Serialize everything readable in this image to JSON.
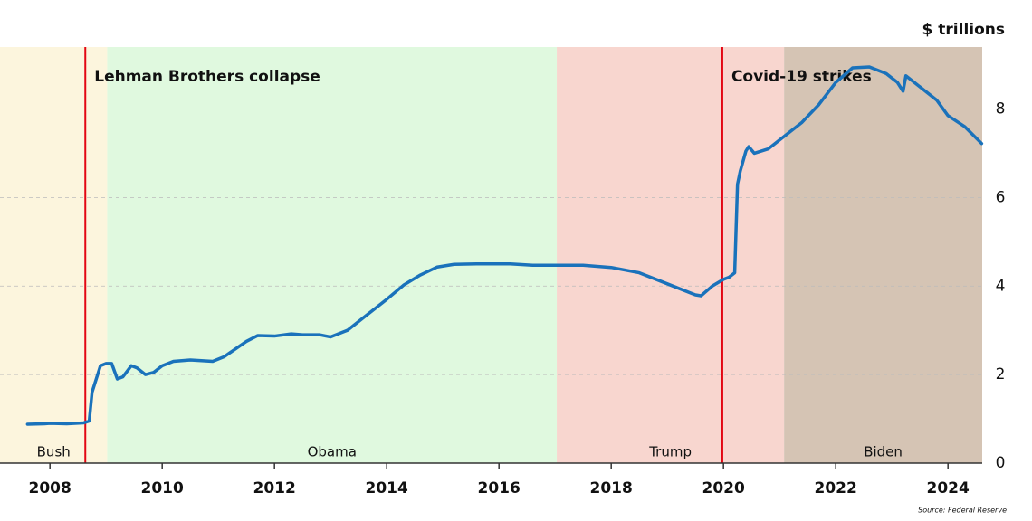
{
  "chart_data": {
    "type": "line",
    "y_axis_label": "$ trillions",
    "source": "Source: Federal Reserve",
    "x": [
      2007.6,
      2007.9,
      2008.0,
      2008.3,
      2008.6,
      2008.7,
      2008.75,
      2008.85,
      2008.9,
      2009.0,
      2009.1,
      2009.2,
      2009.3,
      2009.45,
      2009.55,
      2009.7,
      2009.85,
      2010.0,
      2010.2,
      2010.5,
      2010.9,
      2011.1,
      2011.5,
      2011.7,
      2012.0,
      2012.3,
      2012.5,
      2012.8,
      2013.0,
      2013.3,
      2013.6,
      2014.0,
      2014.3,
      2014.6,
      2014.9,
      2015.2,
      2015.6,
      2016.2,
      2016.6,
      2017.5,
      2018.0,
      2018.5,
      2019.0,
      2019.5,
      2019.6,
      2019.8,
      2020.0,
      2020.1,
      2020.2,
      2020.25,
      2020.3,
      2020.4,
      2020.45,
      2020.55,
      2020.8,
      2021.0,
      2021.2,
      2021.4,
      2021.7,
      2022.0,
      2022.3,
      2022.6,
      2022.9,
      2023.1,
      2023.2,
      2023.25,
      2023.5,
      2023.8,
      2024.0,
      2024.3,
      2024.6
    ],
    "series": [
      {
        "color": "#1a72bb",
        "values": [
          0.88,
          0.89,
          0.9,
          0.89,
          0.91,
          0.95,
          1.6,
          2.0,
          2.2,
          2.25,
          2.25,
          1.9,
          1.95,
          2.2,
          2.15,
          2.0,
          2.05,
          2.2,
          2.3,
          2.33,
          2.3,
          2.4,
          2.75,
          2.88,
          2.87,
          2.92,
          2.9,
          2.9,
          2.85,
          3.0,
          3.3,
          3.7,
          4.02,
          4.25,
          4.43,
          4.49,
          4.5,
          4.5,
          4.47,
          4.47,
          4.42,
          4.3,
          4.05,
          3.8,
          3.78,
          4.0,
          4.15,
          4.2,
          4.3,
          6.3,
          6.6,
          7.05,
          7.15,
          7.0,
          7.1,
          7.3,
          7.5,
          7.7,
          8.1,
          8.6,
          8.93,
          8.95,
          8.8,
          8.6,
          8.4,
          8.75,
          8.5,
          8.2,
          7.85,
          7.6,
          7.22
        ]
      }
    ],
    "xlim": [
      2007.11,
      2024.61
    ],
    "ylim": [
      0,
      9.4
    ],
    "xticks": [
      2008,
      2010,
      2012,
      2014,
      2016,
      2018,
      2020,
      2022,
      2024
    ],
    "yticks": [
      0,
      2,
      4,
      6,
      8
    ],
    "grid": true,
    "bands": [
      {
        "label": "Bush",
        "start": 2007.11,
        "end": 2009.02,
        "color": "#fcf5dd"
      },
      {
        "label": "Obama",
        "start": 2009.02,
        "end": 2017.03,
        "color": "#e0f9df"
      },
      {
        "label": "Trump",
        "start": 2017.03,
        "end": 2021.08,
        "color": "#f8d6cf"
      },
      {
        "label": "Biden",
        "start": 2021.08,
        "end": 2024.61,
        "color": "#d5c4b4"
      }
    ],
    "annotations": [
      {
        "text": "Lehman Brothers collapse",
        "x": 2008.63,
        "color": "#e30613"
      },
      {
        "text": "Covid-19 strikes",
        "x": 2019.98,
        "color": "#e30613"
      }
    ]
  }
}
